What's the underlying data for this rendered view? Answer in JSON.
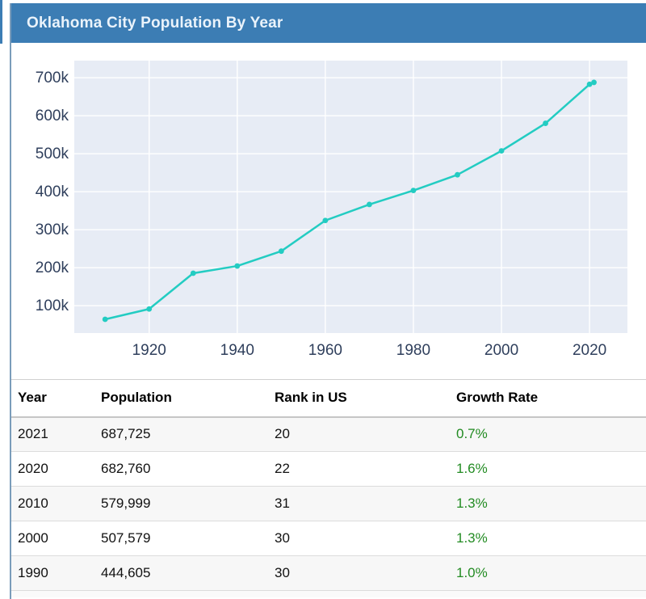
{
  "header": {
    "title": "Oklahoma City Population By Year"
  },
  "colors": {
    "header_bg": "#3c7db4",
    "header_text": "#eaf3fb",
    "page_border": "#7a9cba",
    "line_color": "#23ccc2",
    "plot_bg": "#e7ecf5",
    "gridline": "#ffffff",
    "tick_text": "#2f3f5c",
    "growth_green": "#228b22",
    "row_alt_bg": "#f7f7f7"
  },
  "chart_data": {
    "type": "line",
    "title": "Oklahoma City Population By Year",
    "xlabel": "",
    "ylabel": "",
    "x": [
      1910,
      1920,
      1930,
      1940,
      1950,
      1960,
      1970,
      1980,
      1990,
      2000,
      2010,
      2020,
      2021
    ],
    "series": [
      {
        "name": "Population",
        "values": [
          64205,
          91295,
          185389,
          204424,
          243504,
          324253,
          366481,
          403213,
          444605,
          507579,
          579999,
          682760,
          687725
        ]
      }
    ],
    "xlim": [
      1903,
      2028.6
    ],
    "ylim": [
      28000,
      745000
    ],
    "xtick_values": [
      1920,
      1940,
      1960,
      1980,
      2000,
      2020
    ],
    "xtick_labels": [
      "1920",
      "1940",
      "1960",
      "1980",
      "2000",
      "2020"
    ],
    "ytick_values": [
      100000,
      200000,
      300000,
      400000,
      500000,
      600000,
      700000
    ],
    "ytick_labels": [
      "100k",
      "200k",
      "300k",
      "400k",
      "500k",
      "600k",
      "700k"
    ],
    "grid": true,
    "legend": false
  },
  "table": {
    "columns": [
      "Year",
      "Population",
      "Rank in US",
      "Growth Rate"
    ],
    "rows": [
      {
        "year": "2021",
        "population": "687,725",
        "rank": "20",
        "growth": "0.7%"
      },
      {
        "year": "2020",
        "population": "682,760",
        "rank": "22",
        "growth": "1.6%"
      },
      {
        "year": "2010",
        "population": "579,999",
        "rank": "31",
        "growth": "1.3%"
      },
      {
        "year": "2000",
        "population": "507,579",
        "rank": "30",
        "growth": "1.3%"
      },
      {
        "year": "1990",
        "population": "444,605",
        "rank": "30",
        "growth": "1.0%"
      }
    ]
  }
}
